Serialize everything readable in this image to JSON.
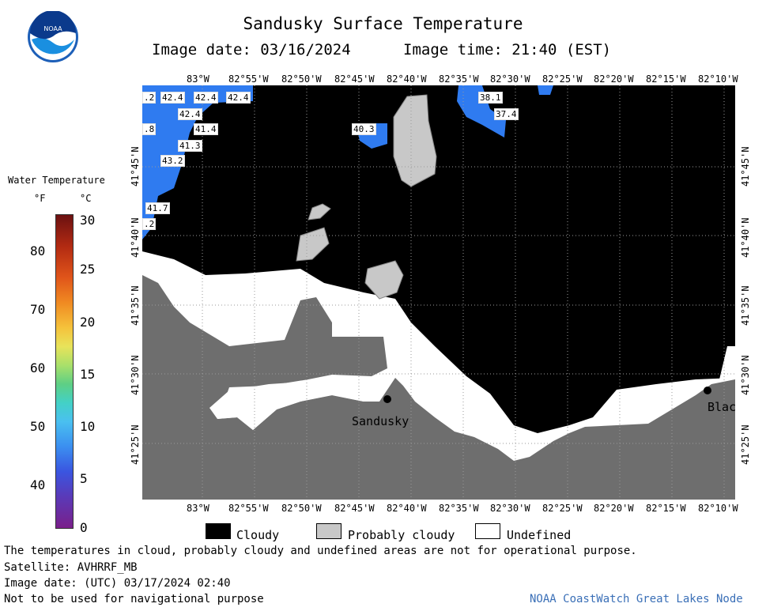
{
  "header": {
    "title": "Sandusky Surface Temperature",
    "image_date": "Image date: 03/16/2024",
    "image_time": "Image time: 21:40 (EST)"
  },
  "logo_text": "NOAA",
  "axes": {
    "lon_ticks": [
      "83°W",
      "82°55'W",
      "82°50'W",
      "82°45'W",
      "82°40'W",
      "82°35'W",
      "82°30'W",
      "82°25'W",
      "82°20'W",
      "82°15'W",
      "82°10'W"
    ],
    "lat_ticks": [
      "41°45'N",
      "41°40'N",
      "41°35'N",
      "41°30'N",
      "41°25'N"
    ]
  },
  "color_scale": {
    "title": "Water Temperature",
    "unit_f": "°F",
    "unit_c": "°C",
    "f_ticks": [
      "80",
      "70",
      "60",
      "50",
      "40"
    ],
    "c_ticks": [
      "30",
      "25",
      "20",
      "15",
      "10",
      "5",
      "0"
    ]
  },
  "temperature_labels": [
    ".2",
    "42.4",
    "42.4",
    "42.4",
    "42.4",
    ".8",
    "41.4",
    "41.3",
    "43.2",
    "41.7",
    ".2",
    "40.3",
    "38.1",
    "37.4"
  ],
  "cities": [
    "Sandusky",
    "Blac"
  ],
  "legend": {
    "cloudy": "Cloudy",
    "probably_cloudy": "Probably cloudy",
    "undefined": "Undefined"
  },
  "footer": {
    "disclaimer": "The temperatures in cloud, probably cloudy and undefined areas are not for operational purpose.",
    "satellite": "Satellite: AVHRRF_MB",
    "utc_date": "Image date: (UTC) 03/17/2024  02:40",
    "nav_warning": "Not to be used for navigational purpose",
    "credit": "NOAA CoastWatch Great Lakes Node"
  },
  "colors": {
    "cloudy": "#000000",
    "probably_cloudy": "#c8c8c8",
    "land": "#6e6e6e",
    "undefined": "#ffffff",
    "water_blue": "#2f7bf0",
    "credit_text": "#3a6fb7"
  }
}
